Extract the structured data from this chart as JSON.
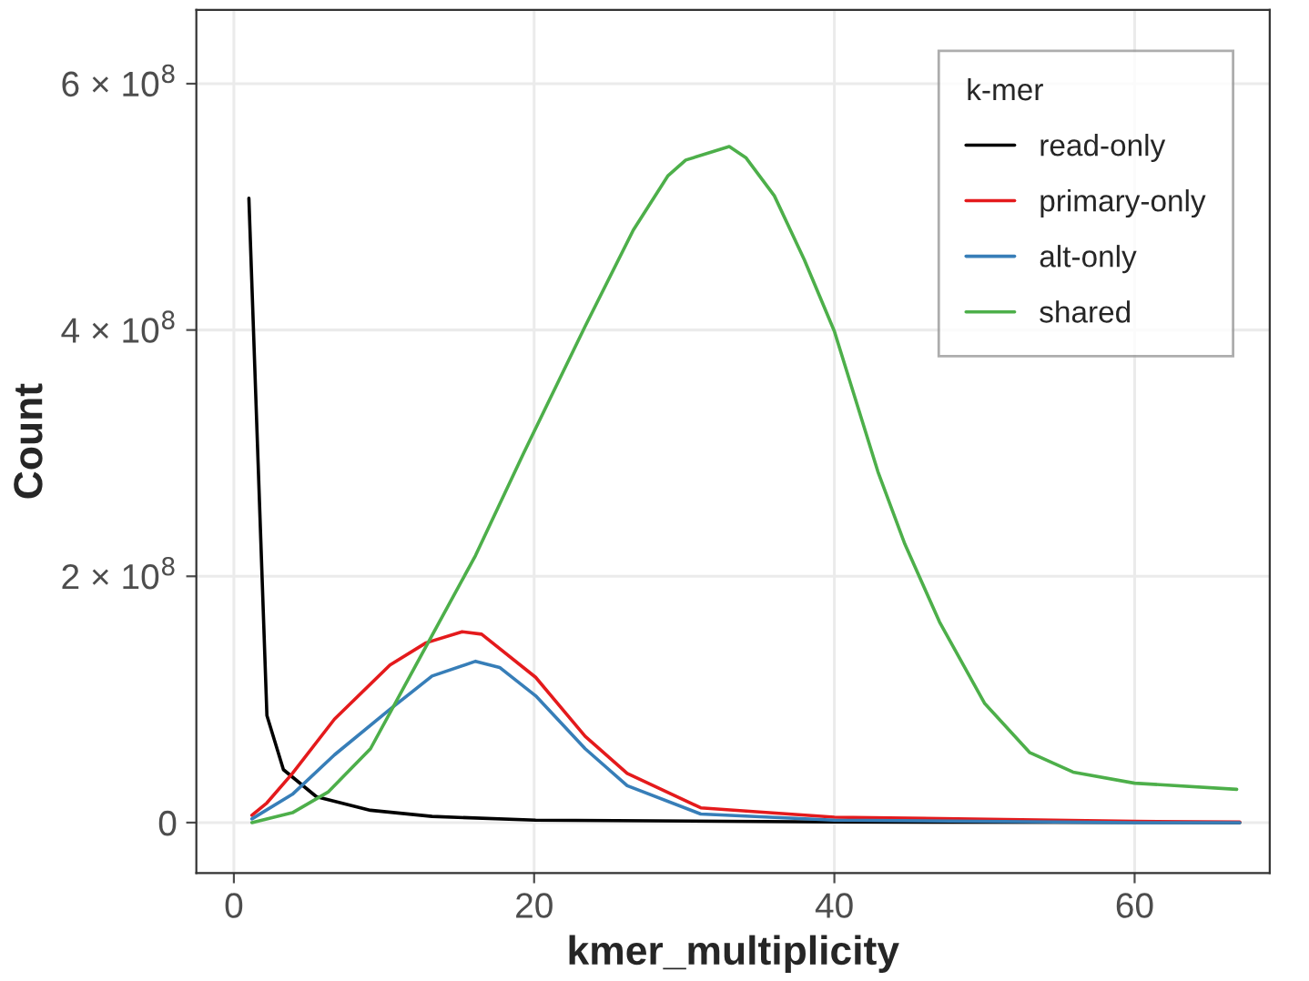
{
  "chart_data": {
    "type": "line",
    "xlabel": "kmer_multiplicity",
    "ylabel": "Count",
    "legend_title": "k-mer",
    "legend": "top right",
    "grid": true,
    "line_style": "solid",
    "xlim": [
      -2.5,
      69
    ],
    "xticks": [
      0,
      20,
      40,
      60
    ],
    "ylim": [
      -41000000,
      660000000
    ],
    "yticks": [
      0,
      {
        "value": 200000000,
        "label": "2 × 10$^{8}$"
      },
      {
        "value": 400000000,
        "label": "4 × 10$^{8}$"
      },
      {
        "value": 600000000,
        "label": "6 × 10$^{8}$"
      }
    ],
    "series": [
      {
        "name": "read-only",
        "color": "#000000",
        "x": [
          1,
          2.2,
          3.3,
          5.5,
          9.1,
          13.2,
          20.1,
          40,
          67
        ],
        "values": [
          507000000,
          87000000,
          43000000,
          21000000,
          10000000,
          5000000,
          2000000,
          500000,
          0
        ]
      },
      {
        "name": "primary-only",
        "color": "#e41a1c",
        "x": [
          1.2,
          2.2,
          3.9,
          6.7,
          10.4,
          12.8,
          15.2,
          16.5,
          20.1,
          23.4,
          26.2,
          31.1,
          40,
          60,
          67
        ],
        "values": [
          6000000,
          16000000,
          40000000,
          84000000,
          128000000,
          146000000,
          155000000,
          153000000,
          118000000,
          70000000,
          40000000,
          12000000,
          4400000,
          1000000,
          500000
        ]
      },
      {
        "name": "alt-only",
        "color": "#377eb8",
        "x": [
          1.2,
          3.9,
          6.7,
          10.4,
          13.2,
          16.1,
          17.7,
          20.1,
          23.4,
          26.2,
          31.1,
          40,
          60,
          67
        ],
        "values": [
          3000000,
          23000000,
          55000000,
          92000000,
          119000000,
          131000000,
          126000000,
          103000000,
          60000000,
          30000000,
          7000000,
          2000000,
          0,
          0
        ]
      },
      {
        "name": "shared",
        "color": "#4daf4a",
        "x": [
          1.2,
          3.9,
          6.3,
          9.1,
          12.8,
          16.1,
          19.3,
          23.4,
          26.6,
          28.9,
          30.1,
          33,
          34.1,
          36,
          38,
          40,
          42.9,
          44.7,
          47,
          50,
          53,
          55.9,
          60,
          66.8
        ],
        "values": [
          0,
          8000000,
          25000000,
          60000000,
          143000000,
          217000000,
          300000000,
          403000000,
          481000000,
          525000000,
          538000000,
          549000000,
          540000000,
          509000000,
          457000000,
          399000000,
          285000000,
          226000000,
          163000000,
          97000000,
          57000000,
          41000000,
          32000000,
          27000000
        ]
      }
    ]
  }
}
